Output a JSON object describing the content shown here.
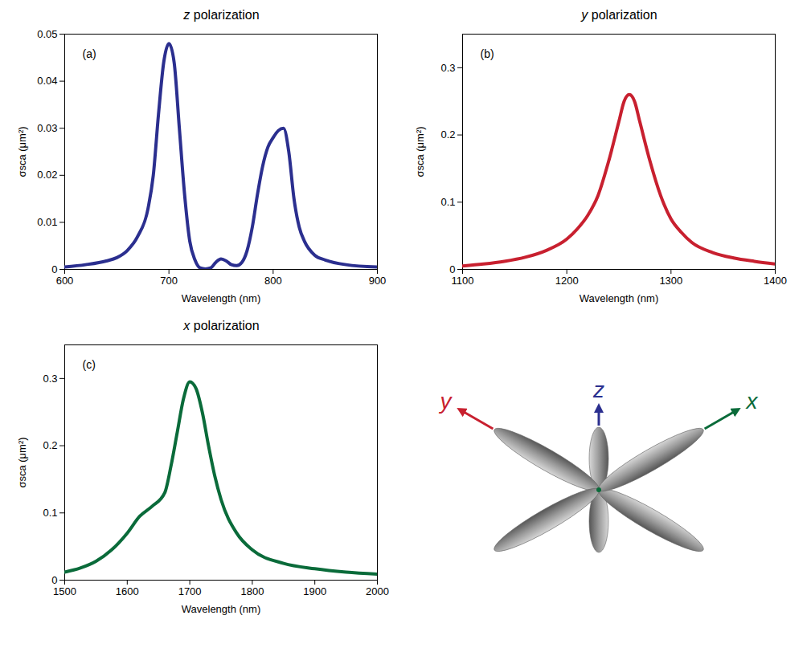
{
  "chart_data": [
    {
      "type": "line",
      "title": "z polarization",
      "annotation": "(a)",
      "xlabel": "Wavelength (nm)",
      "ylabel": "σsca (μm²)",
      "x": [
        600,
        620,
        640,
        650,
        660,
        670,
        680,
        685,
        690,
        695,
        700,
        705,
        710,
        715,
        720,
        725,
        730,
        735,
        740,
        745,
        750,
        755,
        760,
        765,
        770,
        775,
        780,
        785,
        790,
        795,
        800,
        805,
        810,
        815,
        820,
        825,
        830,
        840,
        850,
        870,
        900
      ],
      "values": [
        0.0005,
        0.001,
        0.0018,
        0.0025,
        0.004,
        0.007,
        0.013,
        0.02,
        0.033,
        0.044,
        0.048,
        0.044,
        0.03,
        0.016,
        0.006,
        0.002,
        0.0003,
        0.0001,
        0.0003,
        0.0015,
        0.0022,
        0.0018,
        0.001,
        0.0008,
        0.0015,
        0.004,
        0.009,
        0.016,
        0.022,
        0.026,
        0.028,
        0.0295,
        0.03,
        0.025,
        0.015,
        0.009,
        0.006,
        0.003,
        0.002,
        0.001,
        0.0005
      ],
      "color": "#2b2f8f",
      "xlim": [
        600,
        900
      ],
      "xticks": [
        600,
        700,
        800,
        900
      ],
      "ylim": [
        0,
        0.05
      ],
      "yticks": [
        0,
        0.01,
        0.02,
        0.03,
        0.04,
        0.05
      ]
    },
    {
      "type": "line",
      "title": "y polarization",
      "annotation": "(b)",
      "xlabel": "Wavelength (nm)",
      "ylabel": "σsca (μm²)",
      "x": [
        1100,
        1120,
        1140,
        1160,
        1180,
        1200,
        1210,
        1220,
        1230,
        1240,
        1250,
        1255,
        1260,
        1265,
        1270,
        1280,
        1290,
        1300,
        1310,
        1320,
        1340,
        1360,
        1380,
        1400
      ],
      "values": [
        0.005,
        0.008,
        0.012,
        0.018,
        0.028,
        0.045,
        0.06,
        0.08,
        0.11,
        0.16,
        0.22,
        0.25,
        0.26,
        0.25,
        0.22,
        0.16,
        0.11,
        0.075,
        0.055,
        0.04,
        0.025,
        0.017,
        0.012,
        0.008
      ],
      "color": "#c8202f",
      "xlim": [
        1100,
        1400
      ],
      "xticks": [
        1100,
        1200,
        1300,
        1400
      ],
      "ylim": [
        0,
        0.35
      ],
      "yticks": [
        0,
        0.1,
        0.2,
        0.3
      ]
    },
    {
      "type": "line",
      "title": "x polarization",
      "annotation": "(c)",
      "xlabel": "Wavelength (nm)",
      "ylabel": "σsca (μm²)",
      "x": [
        1500,
        1525,
        1550,
        1575,
        1600,
        1620,
        1640,
        1660,
        1670,
        1680,
        1690,
        1700,
        1710,
        1720,
        1730,
        1740,
        1750,
        1775,
        1800,
        1850,
        1900,
        1950,
        2000
      ],
      "values": [
        0.012,
        0.018,
        0.028,
        0.045,
        0.07,
        0.095,
        0.11,
        0.13,
        0.17,
        0.22,
        0.27,
        0.295,
        0.285,
        0.25,
        0.2,
        0.155,
        0.12,
        0.07,
        0.045,
        0.025,
        0.017,
        0.012,
        0.009
      ],
      "color": "#0a6b3a",
      "xlim": [
        1500,
        2000
      ],
      "xticks": [
        1500,
        1600,
        1700,
        1800,
        1900,
        2000
      ],
      "ylim": [
        0,
        0.35
      ],
      "yticks": [
        0,
        0.1,
        0.2,
        0.3
      ]
    }
  ],
  "diagram": {
    "axes": [
      {
        "label": "z",
        "color": "#2b2f8f"
      },
      {
        "label": "y",
        "color": "#c8202f"
      },
      {
        "label": "x",
        "color": "#0a6b3a"
      }
    ]
  }
}
